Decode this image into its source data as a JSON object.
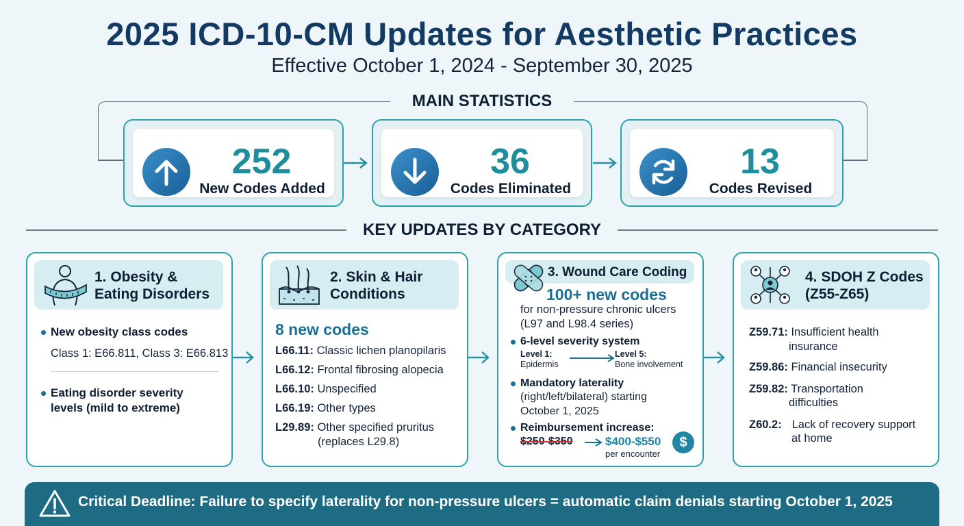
{
  "header": {
    "title": "2025 ICD-10-CM Updates for Aesthetic Practices",
    "subtitle": "Effective October 1, 2024 - September 30, 2025"
  },
  "main_statistics": {
    "heading": "MAIN STATISTICS",
    "stats": [
      {
        "value": "252",
        "label": "New Codes Added",
        "icon": "arrow-up-icon"
      },
      {
        "value": "36",
        "label": "Codes Eliminated",
        "icon": "arrow-down-icon"
      },
      {
        "value": "13",
        "label": "Codes Revised",
        "icon": "refresh-icon"
      }
    ]
  },
  "key_updates": {
    "heading": "KEY UPDATES BY CATEGORY",
    "obesity": {
      "title_line1": "1. Obesity &",
      "title_line2": "Eating Disorders",
      "icon": "measuring-tape-body-icon",
      "bullet1": "New obesity class codes",
      "bullet1_detail": "Class 1: E66.811, Class 3: E66.813",
      "bullet2_line1": "Eating disorder severity",
      "bullet2_line2": "levels (mild to extreme)"
    },
    "skin": {
      "title_line1": "2. Skin & Hair",
      "title_line2": "Conditions",
      "icon": "skin-hair-icon",
      "highlight": "8 new codes",
      "codes": [
        {
          "code": "L66.11:",
          "desc": "Classic lichen planopilaris"
        },
        {
          "code": "L66.12:",
          "desc": "Frontal fibrosing alopecia"
        },
        {
          "code": "L66.10:",
          "desc": "Unspecified"
        },
        {
          "code": "L66.19:",
          "desc": "Other types"
        },
        {
          "code": "L29.89:",
          "desc": "Other specified pruritus"
        }
      ],
      "last_note": "(replaces L29.8)"
    },
    "wound": {
      "title": "3. Wound Care Coding",
      "icon": "bandage-icon",
      "highlight": "100+ new codes",
      "desc_line1": "for non-pressure chronic ulcers",
      "desc_line2": "(L97 and L98.4 series)",
      "severity_title": "6-level severity system",
      "level1_label": "Level 1:",
      "level1_desc": "Epidermis",
      "level5_label": "Level 5:",
      "level5_desc": "Bone involvement",
      "laterality_title": "Mandatory laterality",
      "laterality_line1": "(right/left/bilateral) starting",
      "laterality_line2": "October 1, 2025",
      "reimb_title": "Reimbursement increase:",
      "old_range": "$250-$350",
      "new_range": "$400-$550",
      "per": "per encounter",
      "dollar_icon": "dollar-icon"
    },
    "sdoh": {
      "title_line1": "4. SDOH Z Codes",
      "title_line2": "(Z55-Z65)",
      "icon": "network-people-icon",
      "codes": [
        {
          "code": "Z59.71:",
          "desc1": "Insufficient health",
          "desc2": "insurance"
        },
        {
          "code": "Z59.86:",
          "desc1": "Financial insecurity",
          "desc2": ""
        },
        {
          "code": "Z59.82:",
          "desc1": "Transportation",
          "desc2": "difficulties"
        },
        {
          "code": "Z60.2:",
          "desc1": "Lack of recovery support",
          "desc2": "at home"
        }
      ]
    }
  },
  "banner": {
    "icon": "warning-icon",
    "text": "Critical Deadline: Failure to specify laterality for non-pressure ulcers = automatic claim denials starting October 1, 2025"
  },
  "colors": {
    "title": "#123a63",
    "teal": "#2aa2ac",
    "accent_blue": "#1b6f94",
    "banner": "#1e6b84",
    "strike_red": "#d0312d"
  }
}
